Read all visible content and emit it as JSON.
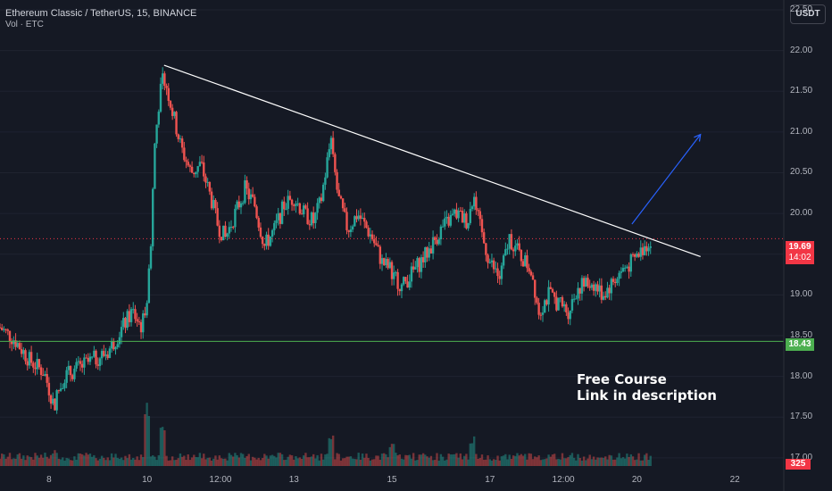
{
  "header": {
    "title": "Ethereum Classic / TetherUS, 15, BINANCE",
    "volume_label": "Vol · ETC"
  },
  "currency_button": "USDT",
  "annotation": {
    "line1": "Free Course",
    "line2": "Link in description"
  },
  "price_tag": {
    "value": "19.69",
    "countdown": "14:02"
  },
  "support_tag": "18.43",
  "volume_tag": "325",
  "colors": {
    "background": "#151924",
    "grid": "#1f2330",
    "up": "#26a69a",
    "down": "#ef5350",
    "trendline": "#ffffff",
    "support": "#4caf50",
    "arrow": "#2962ff",
    "price_line": "#f23645"
  },
  "chart_data": {
    "type": "candlestick",
    "title": "Ethereum Classic / TetherUS, 15, BINANCE",
    "y_ticks": [
      17.0,
      17.5,
      18.0,
      18.5,
      19.0,
      19.5,
      20.0,
      20.5,
      21.0,
      21.5,
      22.0,
      22.5
    ],
    "y_tick_labels": [
      "17.00",
      "17.50",
      "18.00",
      "18.50",
      "19.00",
      "19.50",
      "20.00",
      "20.50",
      "21.00",
      "21.50",
      "22.00",
      "22.50"
    ],
    "ylim": [
      16.9,
      22.62
    ],
    "x_ticks": [
      "8",
      "10",
      "12:00",
      "13",
      "15",
      "17",
      "12:00",
      "20",
      "22"
    ],
    "x_tick_days": [
      8.0,
      10.0,
      11.5,
      13.0,
      15.0,
      17.0,
      18.5,
      20.0,
      22.0
    ],
    "xlim": [
      7.0,
      23.0
    ],
    "last_price": 19.69,
    "support_level": 18.43,
    "last_volume": 325,
    "trendline": [
      {
        "day": 10.35,
        "price": 21.82
      },
      {
        "day": 21.3,
        "price": 19.47
      }
    ],
    "breakout_arrow": [
      {
        "day": 19.9,
        "price": 19.87
      },
      {
        "day": 21.3,
        "price": 20.97
      }
    ],
    "price_path": [
      {
        "day": 7.0,
        "price": 18.6
      },
      {
        "day": 7.3,
        "price": 18.45
      },
      {
        "day": 7.6,
        "price": 18.2
      },
      {
        "day": 7.9,
        "price": 18.05
      },
      {
        "day": 8.1,
        "price": 17.65
      },
      {
        "day": 8.3,
        "price": 18.0
      },
      {
        "day": 8.6,
        "price": 18.1
      },
      {
        "day": 8.9,
        "price": 18.2
      },
      {
        "day": 9.2,
        "price": 18.3
      },
      {
        "day": 9.4,
        "price": 18.5
      },
      {
        "day": 9.7,
        "price": 18.8
      },
      {
        "day": 9.9,
        "price": 18.6
      },
      {
        "day": 10.0,
        "price": 19.0
      },
      {
        "day": 10.08,
        "price": 19.6
      },
      {
        "day": 10.15,
        "price": 20.8
      },
      {
        "day": 10.25,
        "price": 21.4
      },
      {
        "day": 10.35,
        "price": 21.7
      },
      {
        "day": 10.5,
        "price": 21.3
      },
      {
        "day": 10.7,
        "price": 20.8
      },
      {
        "day": 10.9,
        "price": 20.5
      },
      {
        "day": 11.1,
        "price": 20.6
      },
      {
        "day": 11.3,
        "price": 20.2
      },
      {
        "day": 11.45,
        "price": 19.85
      },
      {
        "day": 11.6,
        "price": 19.7
      },
      {
        "day": 11.8,
        "price": 20.0
      },
      {
        "day": 12.0,
        "price": 20.3
      },
      {
        "day": 12.2,
        "price": 20.1
      },
      {
        "day": 12.4,
        "price": 19.6
      },
      {
        "day": 12.6,
        "price": 19.8
      },
      {
        "day": 12.8,
        "price": 20.1
      },
      {
        "day": 13.0,
        "price": 20.2
      },
      {
        "day": 13.2,
        "price": 20.0
      },
      {
        "day": 13.4,
        "price": 19.9
      },
      {
        "day": 13.55,
        "price": 20.15
      },
      {
        "day": 13.75,
        "price": 20.9
      },
      {
        "day": 13.9,
        "price": 20.2
      },
      {
        "day": 14.1,
        "price": 19.8
      },
      {
        "day": 14.3,
        "price": 20.0
      },
      {
        "day": 14.6,
        "price": 19.7
      },
      {
        "day": 14.8,
        "price": 19.4
      },
      {
        "day": 15.0,
        "price": 19.3
      },
      {
        "day": 15.2,
        "price": 19.1
      },
      {
        "day": 15.45,
        "price": 19.3
      },
      {
        "day": 15.7,
        "price": 19.5
      },
      {
        "day": 16.0,
        "price": 19.8
      },
      {
        "day": 16.3,
        "price": 20.0
      },
      {
        "day": 16.55,
        "price": 19.9
      },
      {
        "day": 16.65,
        "price": 20.2
      },
      {
        "day": 16.85,
        "price": 19.7
      },
      {
        "day": 17.0,
        "price": 19.4
      },
      {
        "day": 17.2,
        "price": 19.2
      },
      {
        "day": 17.4,
        "price": 19.7
      },
      {
        "day": 17.6,
        "price": 19.5
      },
      {
        "day": 17.85,
        "price": 19.3
      },
      {
        "day": 18.0,
        "price": 18.8
      },
      {
        "day": 18.2,
        "price": 19.0
      },
      {
        "day": 18.4,
        "price": 18.9
      },
      {
        "day": 18.6,
        "price": 18.8
      },
      {
        "day": 18.8,
        "price": 19.1
      },
      {
        "day": 19.1,
        "price": 19.15
      },
      {
        "day": 19.3,
        "price": 19.0
      },
      {
        "day": 19.5,
        "price": 19.15
      },
      {
        "day": 19.7,
        "price": 19.3
      },
      {
        "day": 19.9,
        "price": 19.4
      },
      {
        "day": 20.1,
        "price": 19.55
      },
      {
        "day": 20.3,
        "price": 19.69
      }
    ],
    "volume_spikes": [
      {
        "day": 10.0,
        "level": 1.0
      },
      {
        "day": 10.3,
        "level": 0.6
      },
      {
        "day": 13.75,
        "level": 0.55
      },
      {
        "day": 15.0,
        "level": 0.35
      },
      {
        "day": 16.65,
        "level": 0.45
      },
      {
        "day": 8.1,
        "level": 0.25
      }
    ]
  }
}
